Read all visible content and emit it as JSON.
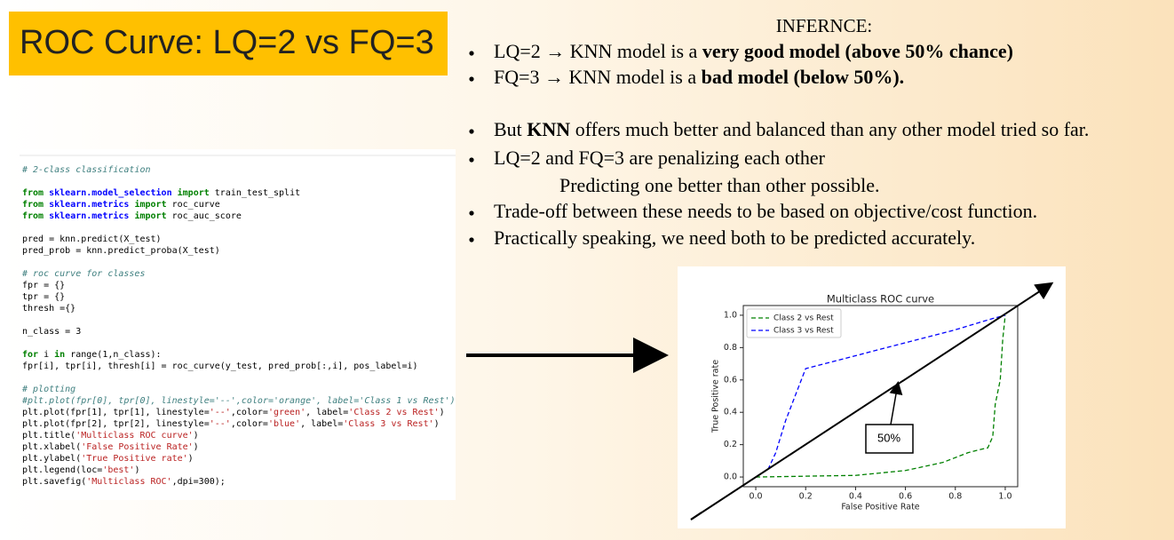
{
  "slide": {
    "title": "ROC Curve: LQ=2 vs FQ=3",
    "inference_heading": "INFERNCE:",
    "bullets": [
      {
        "runs": [
          {
            "text": "LQ=2 → KNN model is a "
          },
          {
            "text": "very good model (above 50% chance)",
            "bold": true
          }
        ]
      },
      {
        "runs": [
          {
            "text": "FQ=3 → KNN model is a "
          },
          {
            "text": "bad model (below 50%).",
            "bold": true
          }
        ]
      },
      {
        "runs": [
          {
            "text": "But "
          },
          {
            "text": "KNN",
            "bold": true
          },
          {
            "text": " offers much better and balanced than any other model tried so far."
          }
        ]
      },
      {
        "runs": [
          {
            "text": "LQ=2 and FQ=3 are penalizing each other"
          }
        ],
        "continuation": "Predicting one better than other possible."
      },
      {
        "runs": [
          {
            "text": "Trade-off between these needs to be based on objective/cost function."
          }
        ]
      },
      {
        "runs": [
          {
            "text": "Practically speaking, we need both to be predicted accurately."
          }
        ]
      }
    ],
    "code_blocks": [
      [
        "# 2-class classification"
      ],
      [
        "from sklearn.model_selection import train_test_split",
        "from sklearn.metrics import roc_curve",
        "from sklearn.metrics import roc_auc_score"
      ],
      [
        "pred = knn.predict(X_test)",
        "pred_prob = knn.predict_proba(X_test)"
      ],
      [
        "# roc curve for classes",
        "fpr = {}",
        "tpr = {}",
        "thresh ={}"
      ],
      [
        "n_class = 3"
      ],
      [
        "for i in range(1,n_class):",
        "    fpr[i], tpr[i], thresh[i] = roc_curve(y_test, pred_prob[:,i], pos_label=i)"
      ],
      [
        "# plotting",
        "#plt.plot(fpr[0], tpr[0], linestyle='--',color='orange', label='Class 1 vs Rest')",
        "plt.plot(fpr[1], tpr[1], linestyle='--',color='green', label='Class 2 vs Rest')",
        "plt.plot(fpr[2], tpr[2], linestyle='--',color='blue', label='Class 3 vs Rest')",
        "plt.title('Multiclass ROC curve')",
        "plt.xlabel('False Positive Rate')",
        "plt.ylabel('True Positive rate')",
        "plt.legend(loc='best')",
        "plt.savefig('Multiclass ROC',dpi=300);"
      ]
    ],
    "annotation": "50%"
  },
  "chart_data": {
    "type": "line",
    "title": "Multiclass ROC curve",
    "x_label": "False Positive Rate",
    "y_label": "True Positive rate",
    "legend": "upper left",
    "series": [
      {
        "name": "Class 2 vs Rest",
        "color": "green",
        "dashed": true,
        "x": [
          0,
          0.2,
          0.4,
          0.6,
          0.75,
          0.85,
          0.9,
          0.93,
          0.95,
          0.96,
          0.98,
          0.99,
          1
        ],
        "values": [
          0,
          0.005,
          0.01,
          0.04,
          0.09,
          0.15,
          0.17,
          0.18,
          0.25,
          0.45,
          0.6,
          0.85,
          1
        ]
      },
      {
        "name": "Class 3 vs Rest",
        "color": "blue",
        "dashed": true,
        "x": [
          0,
          0.05,
          0.08,
          0.12,
          0.2,
          0.4,
          0.6,
          0.8,
          0.95,
          1
        ],
        "values": [
          0,
          0.05,
          0.15,
          0.35,
          0.67,
          0.75,
          0.83,
          0.91,
          0.98,
          1
        ]
      }
    ],
    "xlim": [
      -0.05,
      1.05
    ],
    "ylim": [
      -0.06,
      1.06
    ],
    "xticks": [
      {
        "value": 0,
        "label": "0.0"
      },
      {
        "value": 0.2,
        "label": "0.2"
      },
      {
        "value": 0.4,
        "label": "0.4"
      },
      {
        "value": 0.6,
        "label": "0.6"
      },
      {
        "value": 0.8,
        "label": "0.8"
      },
      {
        "value": 1,
        "label": "1.0"
      }
    ],
    "yticks": [
      {
        "value": 0,
        "label": "0.0"
      },
      {
        "value": 0.2,
        "label": "0.2"
      },
      {
        "value": 0.4,
        "label": "0.4"
      },
      {
        "value": 0.6,
        "label": "0.6"
      },
      {
        "value": 0.8,
        "label": "0.8"
      },
      {
        "value": 1,
        "label": "1.0"
      }
    ]
  }
}
